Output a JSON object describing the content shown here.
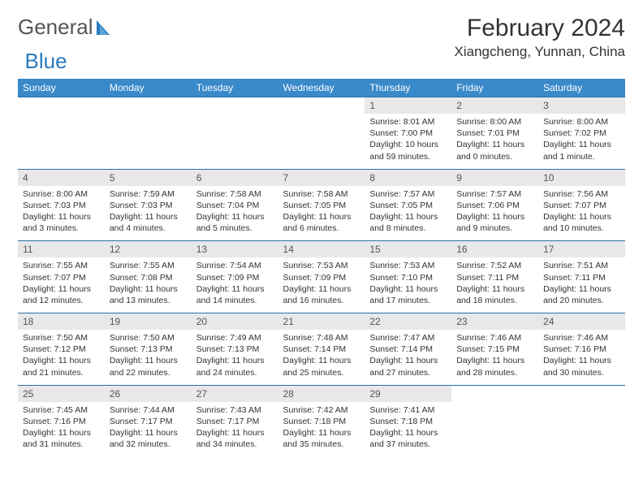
{
  "brand": {
    "part1": "General",
    "part2": "Blue"
  },
  "title": "February 2024",
  "location": "Xiangcheng, Yunnan, China",
  "colors": {
    "header_bg": "#3a89c9",
    "header_text": "#ffffff",
    "daynum_bg": "#e8e8e8",
    "row_border": "#2a6ea6",
    "brand_gray": "#555555",
    "brand_blue": "#2a7bbf"
  },
  "dayNames": [
    "Sunday",
    "Monday",
    "Tuesday",
    "Wednesday",
    "Thursday",
    "Friday",
    "Saturday"
  ],
  "weeks": [
    [
      {
        "n": "",
        "sr": "",
        "ss": "",
        "dl": ""
      },
      {
        "n": "",
        "sr": "",
        "ss": "",
        "dl": ""
      },
      {
        "n": "",
        "sr": "",
        "ss": "",
        "dl": ""
      },
      {
        "n": "",
        "sr": "",
        "ss": "",
        "dl": ""
      },
      {
        "n": "1",
        "sr": "Sunrise: 8:01 AM",
        "ss": "Sunset: 7:00 PM",
        "dl": "Daylight: 10 hours and 59 minutes."
      },
      {
        "n": "2",
        "sr": "Sunrise: 8:00 AM",
        "ss": "Sunset: 7:01 PM",
        "dl": "Daylight: 11 hours and 0 minutes."
      },
      {
        "n": "3",
        "sr": "Sunrise: 8:00 AM",
        "ss": "Sunset: 7:02 PM",
        "dl": "Daylight: 11 hours and 1 minute."
      }
    ],
    [
      {
        "n": "4",
        "sr": "Sunrise: 8:00 AM",
        "ss": "Sunset: 7:03 PM",
        "dl": "Daylight: 11 hours and 3 minutes."
      },
      {
        "n": "5",
        "sr": "Sunrise: 7:59 AM",
        "ss": "Sunset: 7:03 PM",
        "dl": "Daylight: 11 hours and 4 minutes."
      },
      {
        "n": "6",
        "sr": "Sunrise: 7:58 AM",
        "ss": "Sunset: 7:04 PM",
        "dl": "Daylight: 11 hours and 5 minutes."
      },
      {
        "n": "7",
        "sr": "Sunrise: 7:58 AM",
        "ss": "Sunset: 7:05 PM",
        "dl": "Daylight: 11 hours and 6 minutes."
      },
      {
        "n": "8",
        "sr": "Sunrise: 7:57 AM",
        "ss": "Sunset: 7:05 PM",
        "dl": "Daylight: 11 hours and 8 minutes."
      },
      {
        "n": "9",
        "sr": "Sunrise: 7:57 AM",
        "ss": "Sunset: 7:06 PM",
        "dl": "Daylight: 11 hours and 9 minutes."
      },
      {
        "n": "10",
        "sr": "Sunrise: 7:56 AM",
        "ss": "Sunset: 7:07 PM",
        "dl": "Daylight: 11 hours and 10 minutes."
      }
    ],
    [
      {
        "n": "11",
        "sr": "Sunrise: 7:55 AM",
        "ss": "Sunset: 7:07 PM",
        "dl": "Daylight: 11 hours and 12 minutes."
      },
      {
        "n": "12",
        "sr": "Sunrise: 7:55 AM",
        "ss": "Sunset: 7:08 PM",
        "dl": "Daylight: 11 hours and 13 minutes."
      },
      {
        "n": "13",
        "sr": "Sunrise: 7:54 AM",
        "ss": "Sunset: 7:09 PM",
        "dl": "Daylight: 11 hours and 14 minutes."
      },
      {
        "n": "14",
        "sr": "Sunrise: 7:53 AM",
        "ss": "Sunset: 7:09 PM",
        "dl": "Daylight: 11 hours and 16 minutes."
      },
      {
        "n": "15",
        "sr": "Sunrise: 7:53 AM",
        "ss": "Sunset: 7:10 PM",
        "dl": "Daylight: 11 hours and 17 minutes."
      },
      {
        "n": "16",
        "sr": "Sunrise: 7:52 AM",
        "ss": "Sunset: 7:11 PM",
        "dl": "Daylight: 11 hours and 18 minutes."
      },
      {
        "n": "17",
        "sr": "Sunrise: 7:51 AM",
        "ss": "Sunset: 7:11 PM",
        "dl": "Daylight: 11 hours and 20 minutes."
      }
    ],
    [
      {
        "n": "18",
        "sr": "Sunrise: 7:50 AM",
        "ss": "Sunset: 7:12 PM",
        "dl": "Daylight: 11 hours and 21 minutes."
      },
      {
        "n": "19",
        "sr": "Sunrise: 7:50 AM",
        "ss": "Sunset: 7:13 PM",
        "dl": "Daylight: 11 hours and 22 minutes."
      },
      {
        "n": "20",
        "sr": "Sunrise: 7:49 AM",
        "ss": "Sunset: 7:13 PM",
        "dl": "Daylight: 11 hours and 24 minutes."
      },
      {
        "n": "21",
        "sr": "Sunrise: 7:48 AM",
        "ss": "Sunset: 7:14 PM",
        "dl": "Daylight: 11 hours and 25 minutes."
      },
      {
        "n": "22",
        "sr": "Sunrise: 7:47 AM",
        "ss": "Sunset: 7:14 PM",
        "dl": "Daylight: 11 hours and 27 minutes."
      },
      {
        "n": "23",
        "sr": "Sunrise: 7:46 AM",
        "ss": "Sunset: 7:15 PM",
        "dl": "Daylight: 11 hours and 28 minutes."
      },
      {
        "n": "24",
        "sr": "Sunrise: 7:46 AM",
        "ss": "Sunset: 7:16 PM",
        "dl": "Daylight: 11 hours and 30 minutes."
      }
    ],
    [
      {
        "n": "25",
        "sr": "Sunrise: 7:45 AM",
        "ss": "Sunset: 7:16 PM",
        "dl": "Daylight: 11 hours and 31 minutes."
      },
      {
        "n": "26",
        "sr": "Sunrise: 7:44 AM",
        "ss": "Sunset: 7:17 PM",
        "dl": "Daylight: 11 hours and 32 minutes."
      },
      {
        "n": "27",
        "sr": "Sunrise: 7:43 AM",
        "ss": "Sunset: 7:17 PM",
        "dl": "Daylight: 11 hours and 34 minutes."
      },
      {
        "n": "28",
        "sr": "Sunrise: 7:42 AM",
        "ss": "Sunset: 7:18 PM",
        "dl": "Daylight: 11 hours and 35 minutes."
      },
      {
        "n": "29",
        "sr": "Sunrise: 7:41 AM",
        "ss": "Sunset: 7:18 PM",
        "dl": "Daylight: 11 hours and 37 minutes."
      },
      {
        "n": "",
        "sr": "",
        "ss": "",
        "dl": ""
      },
      {
        "n": "",
        "sr": "",
        "ss": "",
        "dl": ""
      }
    ]
  ]
}
